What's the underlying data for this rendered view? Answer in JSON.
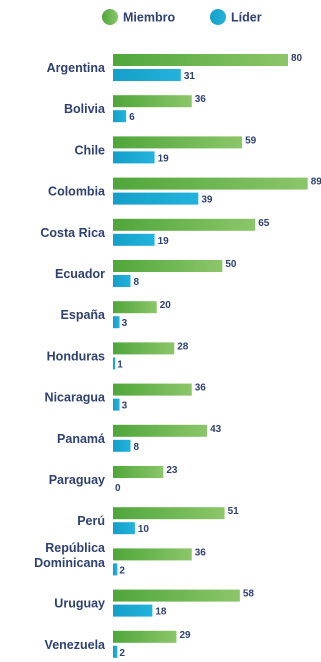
{
  "chart_data": {
    "type": "bar",
    "orientation": "horizontal",
    "legend_position": "top",
    "grid": false,
    "xlim": [
      0,
      90
    ],
    "categories": [
      "Argentina",
      "Bolivia",
      "Chile",
      "Colombia",
      "Costa Rica",
      "Ecuador",
      "España",
      "Honduras",
      "Nicaragua",
      "Panamá",
      "Paraguay",
      "Perú",
      "República Dominicana",
      "Uruguay",
      "Venezuela"
    ],
    "series": [
      {
        "name": "Miembro",
        "color": "#6ab04c",
        "values": [
          80,
          36,
          59,
          89,
          65,
          50,
          20,
          28,
          36,
          43,
          23,
          51,
          36,
          58,
          29
        ]
      },
      {
        "name": "Líder",
        "color": "#1aa7cf",
        "values": [
          31,
          6,
          19,
          39,
          19,
          8,
          3,
          1,
          3,
          8,
          0,
          10,
          2,
          18,
          2
        ]
      }
    ]
  }
}
